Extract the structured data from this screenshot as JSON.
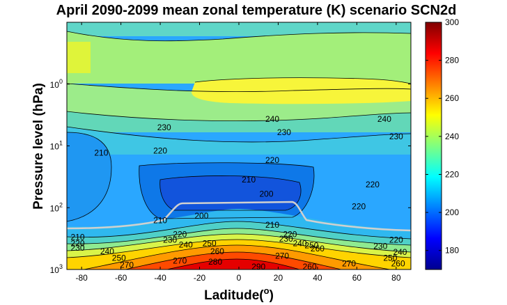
{
  "chart_data": {
    "type": "heatmap",
    "subtype": "filled-contour",
    "title": "April 2090-2099 mean zonal temperature (K) scenario SCN2d",
    "xlabel": "Laditude(",
    "xlabel_sup": "o",
    "xlabel_end": ")",
    "ylabel": "Pressure level (hPa)",
    "x_ticks": [
      "-80",
      "-60",
      "-40",
      "-20",
      "0",
      "20",
      "40",
      "60",
      "80"
    ],
    "x_tick_values": [
      -80,
      -60,
      -40,
      -20,
      0,
      20,
      40,
      60,
      80
    ],
    "y_ticks": [
      {
        "base": "10",
        "exp": "0",
        "value": 1
      },
      {
        "base": "10",
        "exp": "1",
        "value": 10
      },
      {
        "base": "10",
        "exp": "2",
        "value": 100
      },
      {
        "base": "10",
        "exp": "3",
        "value": 1000
      }
    ],
    "xlim": [
      -87.5,
      87.5
    ],
    "ylim": [
      0.1,
      1000
    ],
    "y_scale": "log",
    "y_reversed": true,
    "colorbar": {
      "colormap": "jet",
      "range": [
        170,
        300
      ],
      "ticks": [
        "180",
        "200",
        "220",
        "240",
        "260",
        "280",
        "300"
      ],
      "tick_values": [
        180,
        200,
        220,
        240,
        260,
        280,
        300
      ]
    },
    "contour_labels": [
      {
        "text": "230",
        "lat": -38,
        "p": 5
      },
      {
        "text": "240",
        "lat": 17,
        "p": 3.7
      },
      {
        "text": "230",
        "lat": 23,
        "p": 6
      },
      {
        "text": "240",
        "lat": 74,
        "p": 3.7
      },
      {
        "text": "230",
        "lat": 80,
        "p": 7
      },
      {
        "text": "210",
        "lat": -70,
        "p": 13
      },
      {
        "text": "220",
        "lat": -40,
        "p": 12
      },
      {
        "text": "220",
        "lat": 17,
        "p": 17
      },
      {
        "text": "210",
        "lat": 5,
        "p": 35
      },
      {
        "text": "200",
        "lat": 14,
        "p": 60
      },
      {
        "text": "220",
        "lat": 68,
        "p": 42
      },
      {
        "text": "220",
        "lat": 61,
        "p": 95
      },
      {
        "text": "200",
        "lat": -19,
        "p": 135
      },
      {
        "text": "210",
        "lat": -40,
        "p": 160
      },
      {
        "text": "210",
        "lat": 17,
        "p": 190
      },
      {
        "text": "210",
        "lat": -82,
        "p": 300
      },
      {
        "text": "220",
        "lat": -82,
        "p": 380
      },
      {
        "text": "230",
        "lat": -82,
        "p": 450
      },
      {
        "text": "240",
        "lat": -67,
        "p": 510
      },
      {
        "text": "250",
        "lat": -61,
        "p": 650
      },
      {
        "text": "270",
        "lat": -57,
        "p": 850
      },
      {
        "text": "220",
        "lat": -30,
        "p": 270
      },
      {
        "text": "230",
        "lat": -35,
        "p": 330
      },
      {
        "text": "240",
        "lat": -27,
        "p": 400
      },
      {
        "text": "250",
        "lat": -15,
        "p": 380
      },
      {
        "text": "260",
        "lat": -11,
        "p": 510
      },
      {
        "text": "270",
        "lat": -30,
        "p": 720
      },
      {
        "text": "280",
        "lat": -12,
        "p": 750
      },
      {
        "text": "290",
        "lat": 10,
        "p": 900
      },
      {
        "text": "270",
        "lat": 22,
        "p": 600
      },
      {
        "text": "220",
        "lat": 26,
        "p": 270
      },
      {
        "text": "230",
        "lat": 24,
        "p": 320
      },
      {
        "text": "240",
        "lat": 31,
        "p": 380
      },
      {
        "text": "250",
        "lat": 37,
        "p": 410
      },
      {
        "text": "260",
        "lat": 40,
        "p": 460
      },
      {
        "text": "270",
        "lat": 56,
        "p": 800
      },
      {
        "text": "260",
        "lat": 36,
        "p": 900
      },
      {
        "text": "220",
        "lat": 80,
        "p": 330
      },
      {
        "text": "230",
        "lat": 72,
        "p": 420
      },
      {
        "text": "240",
        "lat": 82,
        "p": 520
      },
      {
        "text": "250",
        "lat": 77,
        "p": 650
      },
      {
        "text": "260",
        "lat": 81,
        "p": 800
      }
    ]
  }
}
